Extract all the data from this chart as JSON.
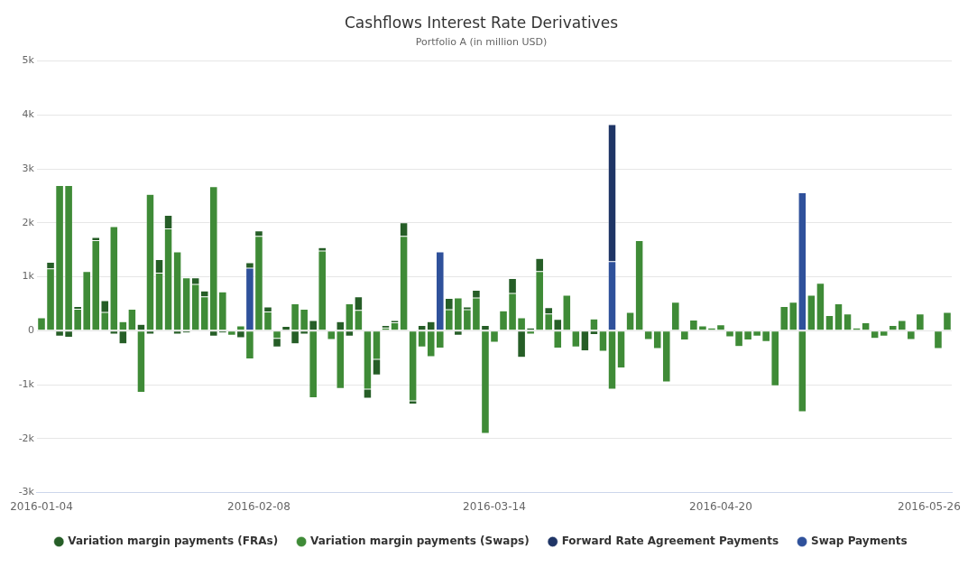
{
  "chart_data": {
    "type": "bar",
    "title": "Cashflows Interest Rate Derivatives",
    "subtitle": "Portfolio A (in million USD)",
    "stacked": true,
    "grid": "y",
    "legend": "bottom",
    "categories": [
      "2016-01-04",
      null,
      null,
      null,
      null,
      null,
      null,
      null,
      null,
      null,
      null,
      null,
      null,
      null,
      null,
      null,
      null,
      null,
      null,
      null,
      null,
      null,
      null,
      null,
      "2016-02-08",
      null,
      null,
      null,
      null,
      null,
      null,
      null,
      null,
      null,
      null,
      null,
      null,
      null,
      null,
      null,
      null,
      null,
      null,
      null,
      null,
      null,
      null,
      null,
      null,
      null,
      "2016-03-14",
      null,
      null,
      null,
      null,
      null,
      null,
      null,
      null,
      null,
      null,
      null,
      null,
      null,
      null,
      null,
      null,
      null,
      null,
      null,
      null,
      null,
      null,
      null,
      null,
      "2016-04-20",
      null,
      null,
      null,
      null,
      null,
      null,
      null,
      null,
      null,
      null,
      null,
      null,
      null,
      null,
      null,
      null,
      null,
      null,
      null,
      null,
      null,
      null,
      "2016-05-26",
      null,
      null
    ],
    "ylim": [
      -3000,
      5000
    ],
    "yticks": [
      {
        "value": -3000,
        "label": "-3k"
      },
      {
        "value": -2000,
        "label": "-2k"
      },
      {
        "value": -1000,
        "label": "-1k"
      },
      0,
      {
        "value": 1000,
        "label": "1k"
      },
      {
        "value": 2000,
        "label": "2k"
      },
      {
        "value": 3000,
        "label": "3k"
      },
      {
        "value": 4000,
        "label": "4k"
      },
      {
        "value": 5000,
        "label": "5k"
      }
    ],
    "series": [
      {
        "name": "Swap Payments",
        "color": "#2f519b",
        "values": [
          null,
          null,
          null,
          null,
          null,
          null,
          null,
          null,
          null,
          null,
          null,
          null,
          null,
          null,
          null,
          null,
          null,
          null,
          null,
          null,
          null,
          null,
          null,
          1160,
          null,
          null,
          null,
          null,
          null,
          null,
          null,
          null,
          null,
          null,
          null,
          null,
          null,
          null,
          null,
          null,
          null,
          null,
          null,
          null,
          1460,
          null,
          null,
          null,
          null,
          null,
          null,
          null,
          null,
          null,
          null,
          null,
          null,
          null,
          null,
          null,
          null,
          null,
          null,
          1280,
          null,
          null,
          null,
          null,
          null,
          null,
          null,
          null,
          null,
          null,
          null,
          null,
          null,
          null,
          null,
          null,
          null,
          null,
          null,
          null,
          2560,
          null,
          null,
          null,
          null,
          null,
          null,
          null,
          null,
          null,
          null,
          null,
          null,
          null,
          null,
          null,
          null
        ]
      },
      {
        "name": "Forward Rate Agreement Payments",
        "color": "#1f3566",
        "values": [
          null,
          null,
          null,
          null,
          null,
          null,
          null,
          null,
          null,
          null,
          null,
          null,
          null,
          null,
          null,
          null,
          null,
          null,
          null,
          null,
          null,
          null,
          null,
          null,
          null,
          null,
          null,
          null,
          null,
          null,
          null,
          null,
          null,
          null,
          null,
          null,
          null,
          null,
          null,
          null,
          null,
          null,
          null,
          null,
          null,
          null,
          null,
          null,
          null,
          null,
          null,
          null,
          null,
          null,
          null,
          null,
          null,
          null,
          null,
          null,
          null,
          null,
          null,
          2540,
          null,
          null,
          null,
          null,
          null,
          null,
          null,
          null,
          null,
          null,
          null,
          null,
          null,
          null,
          null,
          null,
          null,
          null,
          null,
          null,
          null,
          null,
          null,
          null,
          null,
          null,
          null,
          null,
          null,
          null,
          null,
          null,
          null,
          null,
          null,
          null,
          null
        ]
      },
      {
        "name": "Variation margin payments (Swaps)",
        "color": "#3f8b37",
        "values": [
          240,
          1150,
          2690,
          2690,
          400,
          1100,
          1670,
          340,
          1930,
          170,
          400,
          -1140,
          2530,
          1070,
          1890,
          1460,
          980,
          860,
          630,
          2670,
          720,
          -80,
          90,
          -520,
          1750,
          350,
          -140,
          null,
          500,
          400,
          -1240,
          1480,
          -160,
          -1070,
          500,
          380,
          -1080,
          -530,
          50,
          150,
          1750,
          -1300,
          -300,
          -480,
          -320,
          390,
          610,
          390,
          610,
          -1900,
          -210,
          370,
          690,
          240,
          -60,
          1100,
          310,
          -320,
          660,
          -300,
          null,
          220,
          -380,
          -1080,
          -690,
          340,
          1670,
          -160,
          -330,
          -950,
          530,
          -170,
          200,
          90,
          50,
          110,
          -110,
          -290,
          -170,
          -100,
          -200,
          -1020,
          450,
          530,
          -1500,
          660,
          880,
          280,
          500,
          310,
          50,
          150,
          -140,
          -100,
          100,
          190,
          -160,
          310,
          null,
          -330,
          340
        ]
      },
      {
        "name": "Variation margin payments (FRAs)",
        "color": "#265e27",
        "values": [
          null,
          120,
          -100,
          -120,
          50,
          null,
          60,
          220,
          -60,
          -240,
          null,
          120,
          -60,
          250,
          250,
          -60,
          -40,
          120,
          110,
          -100,
          -40,
          null,
          -130,
          100,
          100,
          90,
          -160,
          80,
          -240,
          -60,
          190,
          60,
          null,
          170,
          -100,
          250,
          -170,
          -290,
          50,
          40,
          250,
          -60,
          100,
          170,
          null,
          210,
          -80,
          50,
          140,
          100,
          null,
          null,
          280,
          -490,
          50,
          240,
          120,
          210,
          null,
          null,
          -370,
          -70,
          null,
          null,
          null,
          null,
          null,
          null,
          null,
          null,
          null,
          null,
          null,
          null,
          null,
          null,
          null,
          null,
          null,
          null,
          null,
          null,
          null,
          null,
          null,
          null,
          null,
          null,
          null,
          null,
          null,
          null,
          null,
          null,
          null,
          null,
          null,
          null,
          null,
          null,
          null
        ]
      }
    ]
  }
}
